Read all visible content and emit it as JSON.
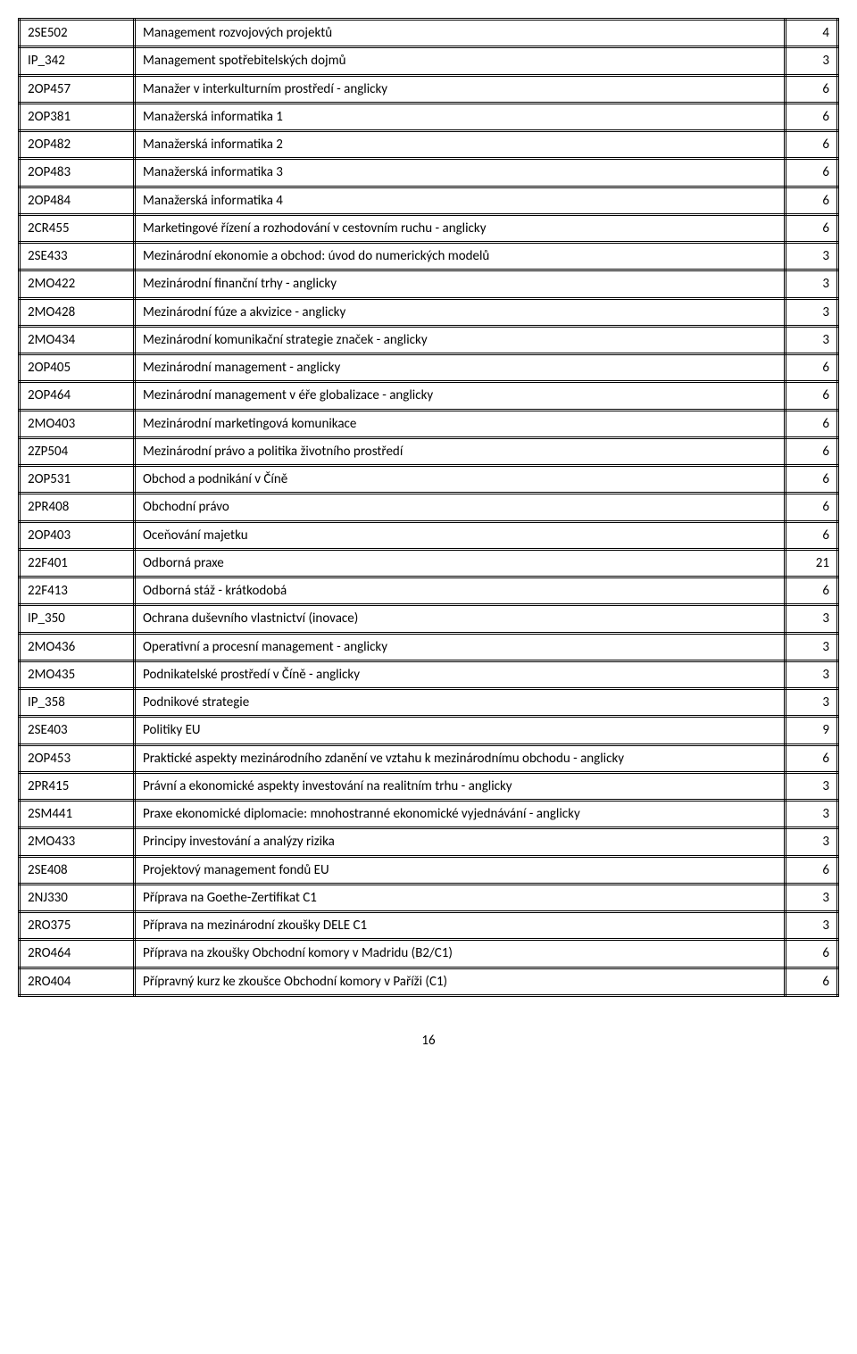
{
  "page_number": "16",
  "courses": [
    {
      "code": "2SE502",
      "name": "Management rozvojových projektů",
      "credits": "4"
    },
    {
      "code": "IP_342",
      "name": "Management spotřebitelských dojmů",
      "credits": "3"
    },
    {
      "code": "2OP457",
      "name": "Manažer v interkulturním prostředí - anglicky",
      "credits": "6"
    },
    {
      "code": "2OP381",
      "name": "Manažerská informatika 1",
      "credits": "6"
    },
    {
      "code": "2OP482",
      "name": "Manažerská informatika 2",
      "credits": "6"
    },
    {
      "code": "2OP483",
      "name": "Manažerská informatika 3",
      "credits": "6"
    },
    {
      "code": "2OP484",
      "name": "Manažerská informatika 4",
      "credits": "6"
    },
    {
      "code": "2CR455",
      "name": "Marketingové řízení a rozhodování v cestovním ruchu - anglicky",
      "credits": "6"
    },
    {
      "code": "2SE433",
      "name": "Mezinárodní ekonomie a obchod: úvod do numerických modelů",
      "credits": "3"
    },
    {
      "code": "2MO422",
      "name": "Mezinárodní finanční trhy - anglicky",
      "credits": "3"
    },
    {
      "code": "2MO428",
      "name": "Mezinárodní fúze a akvizice - anglicky",
      "credits": "3"
    },
    {
      "code": "2MO434",
      "name": "Mezinárodní komunikační strategie značek - anglicky",
      "credits": "3"
    },
    {
      "code": "2OP405",
      "name": "Mezinárodní management - anglicky",
      "credits": "6"
    },
    {
      "code": "2OP464",
      "name": "Mezinárodní management v éře globalizace - anglicky",
      "credits": "6"
    },
    {
      "code": "2MO403",
      "name": "Mezinárodní marketingová komunikace",
      "credits": "6"
    },
    {
      "code": "2ZP504",
      "name": "Mezinárodní právo a politika životního prostředí",
      "credits": "6"
    },
    {
      "code": "2OP531",
      "name": "Obchod a podnikání v Číně",
      "credits": "6"
    },
    {
      "code": "2PR408",
      "name": "Obchodní právo",
      "credits": "6"
    },
    {
      "code": "2OP403",
      "name": "Oceňování majetku",
      "credits": "6"
    },
    {
      "code": "22F401",
      "name": "Odborná praxe",
      "credits": "21"
    },
    {
      "code": "22F413",
      "name": "Odborná stáž - krátkodobá",
      "credits": "6"
    },
    {
      "code": "IP_350",
      "name": "Ochrana duševního vlastnictví (inovace)",
      "credits": "3"
    },
    {
      "code": "2MO436",
      "name": "Operativní a procesní management - anglicky",
      "credits": "3"
    },
    {
      "code": "2MO435",
      "name": "Podnikatelské prostředí v Číně - anglicky",
      "credits": "3"
    },
    {
      "code": "IP_358",
      "name": "Podnikové strategie",
      "credits": "3"
    },
    {
      "code": "2SE403",
      "name": "Politiky EU",
      "credits": "9"
    },
    {
      "code": "2OP453",
      "name": "Praktické aspekty mezinárodního zdanění ve vztahu k mezinárodnímu obchodu - anglicky",
      "credits": "6"
    },
    {
      "code": "2PR415",
      "name": "Právní a ekonomické aspekty investování na realitním trhu - anglicky",
      "credits": "3"
    },
    {
      "code": "2SM441",
      "name": "Praxe ekonomické diplomacie: mnohostranné ekonomické vyjednávání - anglicky",
      "credits": "3"
    },
    {
      "code": "2MO433",
      "name": "Principy investování a analýzy rizika",
      "credits": "3"
    },
    {
      "code": "2SE408",
      "name": "Projektový management fondů EU",
      "credits": "6"
    },
    {
      "code": "2NJ330",
      "name": "Příprava na Goethe-Zertifikat C1",
      "credits": "3"
    },
    {
      "code": "2RO375",
      "name": "Příprava na mezinárodní zkoušky DELE C1",
      "credits": "3"
    },
    {
      "code": "2RO464",
      "name": "Příprava na zkoušky Obchodní komory v Madridu (B2/C1)",
      "credits": "6"
    },
    {
      "code": "2RO404",
      "name": "Přípravný kurz ke zkoušce Obchodní komory v Paříži (C1)",
      "credits": "6"
    }
  ]
}
